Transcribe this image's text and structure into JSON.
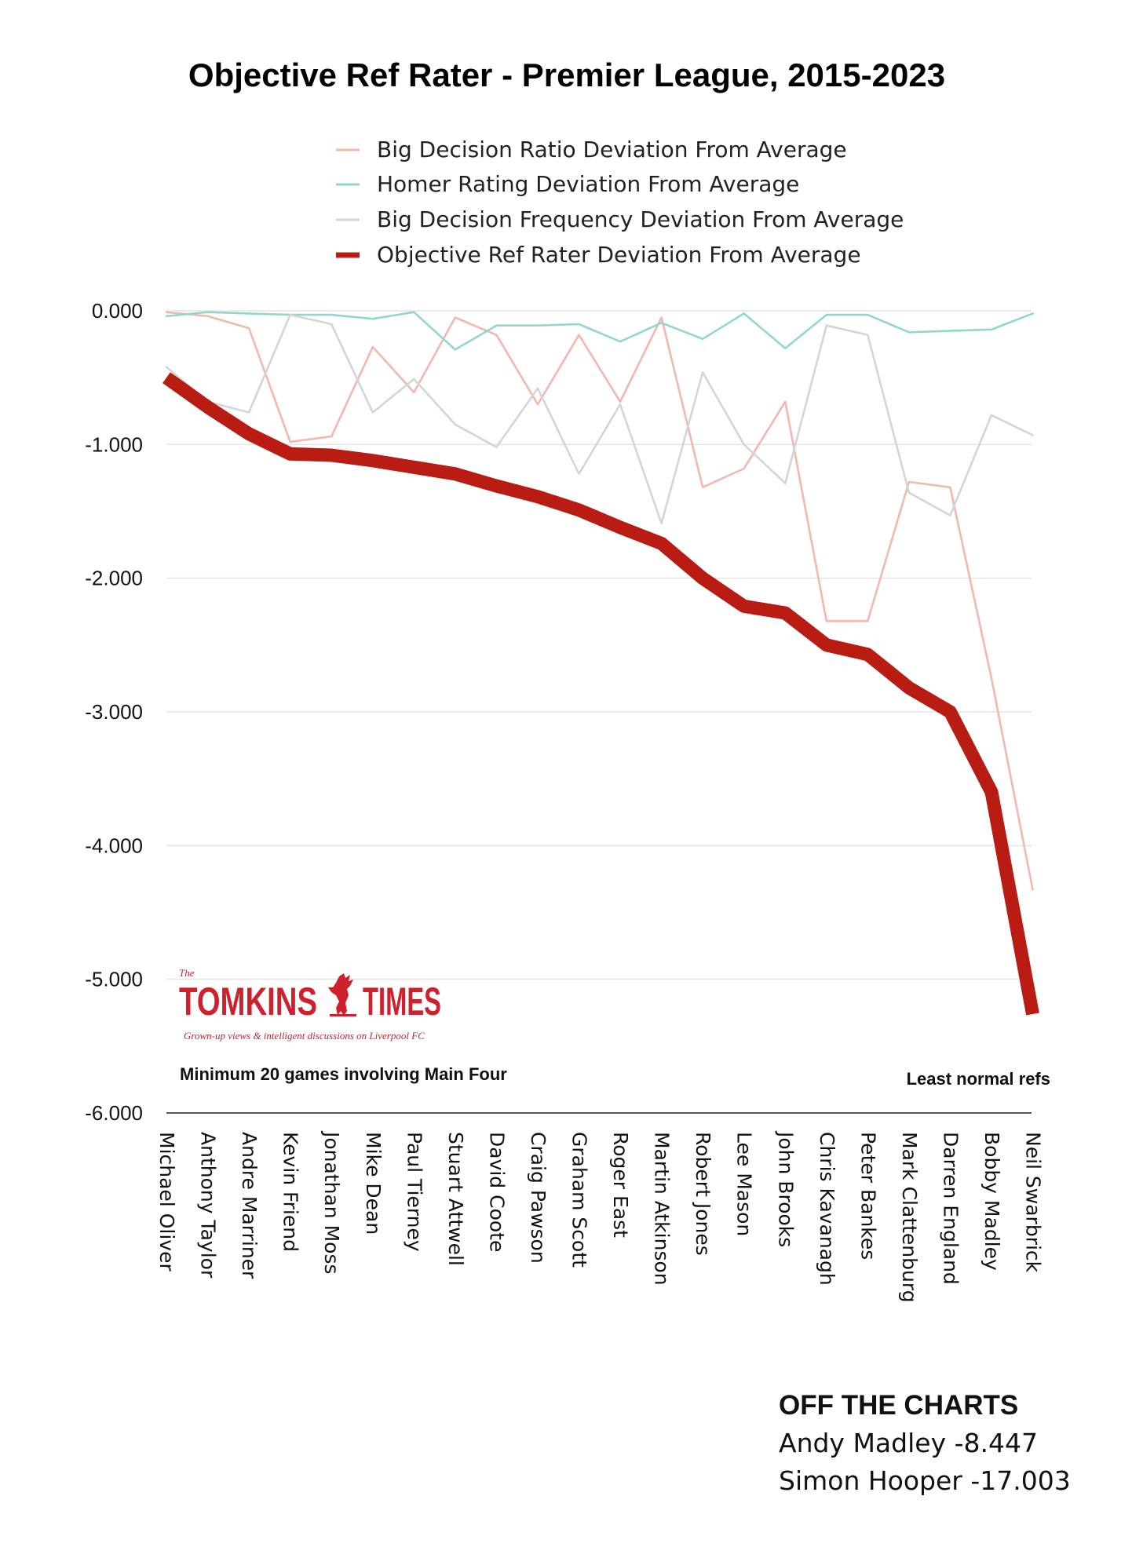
{
  "colors": {
    "ratio": "#f4b7ae",
    "homer": "#93d6cd",
    "frequency": "#d5d5d5",
    "objective": "#b81c12",
    "brand": "#d0202e"
  },
  "logo": {
    "the": "The",
    "left": "TOMKINS",
    "right": "TIMES",
    "tagline": "Grown-up views & intelligent discussions on Liverpool FC",
    "icon": "liverbird-icon"
  },
  "notes": {
    "left": "Minimum 20 games involving Main Four",
    "right": "Least normal refs"
  },
  "off_the_charts": {
    "heading": "OFF THE CHARTS",
    "lines": [
      "Andy Madley -8.447",
      "Simon Hooper -17.003"
    ]
  },
  "chart_data": {
    "type": "line",
    "title": "Objective Ref Rater - Premier League, 2015-2023",
    "xlabel": "",
    "ylabel": "",
    "ylim": [
      -6,
      0
    ],
    "yticks": [
      "0.000",
      "-1.000",
      "-2.000",
      "-3.000",
      "-4.000",
      "-5.000",
      "-6.000"
    ],
    "grid": true,
    "legend_position": "top",
    "categories": [
      "Michael Oliver",
      "Anthony Taylor",
      "Andre Marriner",
      "Kevin Friend",
      "Jonathan Moss",
      "Mike Dean",
      "Paul Tierney",
      "Stuart Attwell",
      "David Coote",
      "Craig Pawson",
      "Graham Scott",
      "Roger East",
      "Martin Atkinson",
      "Robert Jones",
      "Lee Mason",
      "John Brooks",
      "Chris Kavanagh",
      "Peter Bankes",
      "Mark Clattenburg",
      "Darren England",
      "Bobby Madley",
      "Neil Swarbrick"
    ],
    "series": [
      {
        "name": "Big Decision Ratio Deviation From Average",
        "values": [
          -0.01,
          -0.04,
          -0.13,
          -0.98,
          -0.94,
          -0.27,
          -0.61,
          -0.05,
          -0.18,
          -0.7,
          -0.18,
          -0.68,
          -0.05,
          -1.32,
          -1.18,
          -0.68,
          -2.32,
          -2.32,
          -1.28,
          -1.32,
          -2.75,
          -4.33
        ]
      },
      {
        "name": "Homer Rating Deviation From Average",
        "values": [
          -0.04,
          -0.01,
          -0.02,
          -0.03,
          -0.03,
          -0.06,
          -0.01,
          -0.29,
          -0.11,
          -0.11,
          -0.1,
          -0.23,
          -0.09,
          -0.21,
          -0.02,
          -0.28,
          -0.03,
          -0.03,
          -0.16,
          -0.15,
          -0.14,
          -0.02
        ]
      },
      {
        "name": "Big Decision Frequency Deviation From Average",
        "values": [
          -0.42,
          -0.68,
          -0.76,
          -0.03,
          -0.1,
          -0.76,
          -0.51,
          -0.85,
          -1.02,
          -0.58,
          -1.22,
          -0.7,
          -1.59,
          -0.46,
          -1.0,
          -1.29,
          -0.11,
          -0.18,
          -1.36,
          -1.53,
          -0.78,
          -0.93
        ]
      },
      {
        "name": "Objective Ref Rater Deviation From Average",
        "values": [
          -0.5,
          -0.72,
          -0.92,
          -1.07,
          -1.08,
          -1.12,
          -1.17,
          -1.22,
          -1.31,
          -1.39,
          -1.49,
          -1.62,
          -1.74,
          -2.0,
          -2.21,
          -2.26,
          -2.5,
          -2.57,
          -2.82,
          -3.0,
          -3.6,
          -5.26
        ]
      }
    ]
  }
}
